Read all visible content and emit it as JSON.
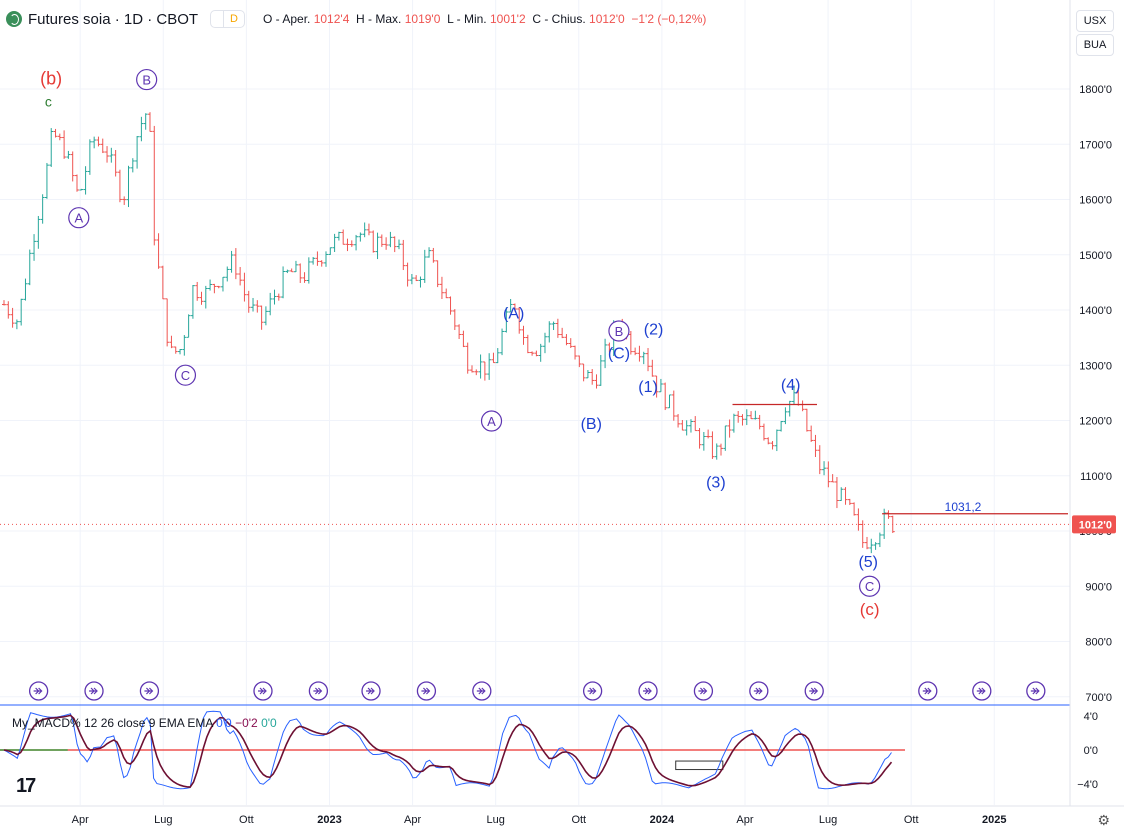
{
  "header": {
    "title": "Futures soia · 1D · CBOT",
    "pill_left": "",
    "pill_right": "D",
    "ohlc": [
      {
        "label": "O - Aper.",
        "value": "1012'4"
      },
      {
        "label": "H - Max.",
        "value": "1019'0"
      },
      {
        "label": "L - Min.",
        "value": "1001'2"
      },
      {
        "label": "C - Chius.",
        "value": "1012'0"
      },
      {
        "label": "",
        "value": "−1'2 (−0,12%)"
      }
    ]
  },
  "currency": {
    "unit": "USX",
    "quote": "BUA"
  },
  "price_axis": {
    "ticks": [
      {
        "v": 1800,
        "label": "1800'0"
      },
      {
        "v": 1700,
        "label": "1700'0"
      },
      {
        "v": 1600,
        "label": "1600'0"
      },
      {
        "v": 1500,
        "label": "1500'0"
      },
      {
        "v": 1400,
        "label": "1400'0"
      },
      {
        "v": 1300,
        "label": "1300'0"
      },
      {
        "v": 1200,
        "label": "1200'0"
      },
      {
        "v": 1100,
        "label": "1100'0"
      },
      {
        "v": 1000,
        "label": "1000'0"
      },
      {
        "v": 900,
        "label": "900'0"
      },
      {
        "v": 800,
        "label": "800'0"
      },
      {
        "v": 700,
        "label": "700'0"
      }
    ],
    "last_price_label": "1012'0",
    "last_price": 1012,
    "level_label": "1031,2",
    "level": 1031.2
  },
  "time_axis": [
    {
      "t": 2.75,
      "label": "Apr"
    },
    {
      "t": 5.75,
      "label": "Lug"
    },
    {
      "t": 8.75,
      "label": "Ott"
    },
    {
      "t": 11.75,
      "label": "2023"
    },
    {
      "t": 14.75,
      "label": "Apr"
    },
    {
      "t": 17.75,
      "label": "Lug"
    },
    {
      "t": 20.75,
      "label": "Ott"
    },
    {
      "t": 23.75,
      "label": "2024"
    },
    {
      "t": 26.75,
      "label": "Apr"
    },
    {
      "t": 29.75,
      "label": "Lug"
    },
    {
      "t": 32.75,
      "label": "Ott"
    },
    {
      "t": 35.75,
      "label": "2025"
    }
  ],
  "wave_labels": [
    {
      "text": "(b)",
      "t": 1.7,
      "p": 1808,
      "color": "#e53935",
      "circled": false,
      "size": 18
    },
    {
      "text": "c",
      "t": 1.6,
      "p": 1768,
      "color": "#2e7d32",
      "circled": false,
      "size": 14
    },
    {
      "text": "B",
      "t": 5.15,
      "p": 1808,
      "color": "#5e35b1",
      "circled": true,
      "size": 13
    },
    {
      "text": "A",
      "t": 2.7,
      "p": 1558,
      "color": "#5e35b1",
      "circled": true,
      "size": 13
    },
    {
      "text": "C",
      "t": 6.55,
      "p": 1273,
      "color": "#5e35b1",
      "circled": true,
      "size": 13
    },
    {
      "text": "(A)",
      "t": 18.4,
      "p": 1385,
      "color": "#1e40d0",
      "circled": false,
      "size": 16
    },
    {
      "text": "A",
      "t": 17.6,
      "p": 1190,
      "color": "#5e35b1",
      "circled": true,
      "size": 13
    },
    {
      "text": "(B)",
      "t": 21.2,
      "p": 1185,
      "color": "#1e40d0",
      "circled": false,
      "size": 16
    },
    {
      "text": "B",
      "t": 22.2,
      "p": 1353,
      "color": "#5e35b1",
      "circled": true,
      "size": 13
    },
    {
      "text": "(C)",
      "t": 22.2,
      "p": 1312,
      "color": "#1e40d0",
      "circled": false,
      "size": 16
    },
    {
      "text": "(2)",
      "t": 23.45,
      "p": 1356,
      "color": "#1e40d0",
      "circled": false,
      "size": 16
    },
    {
      "text": "(1)",
      "t": 23.25,
      "p": 1252,
      "color": "#1e40d0",
      "circled": false,
      "size": 16
    },
    {
      "text": "(3)",
      "t": 25.7,
      "p": 1079,
      "color": "#1e40d0",
      "circled": false,
      "size": 16
    },
    {
      "text": "(4)",
      "t": 28.4,
      "p": 1255,
      "color": "#1e40d0",
      "circled": false,
      "size": 16
    },
    {
      "text": "(5)",
      "t": 31.2,
      "p": 935,
      "color": "#1e40d0",
      "circled": false,
      "size": 16
    },
    {
      "text": "C",
      "t": 31.25,
      "p": 891,
      "color": "#5e35b1",
      "circled": true,
      "size": 13
    },
    {
      "text": "(c)",
      "t": 31.25,
      "p": 848,
      "color": "#e53935",
      "circled": false,
      "size": 17
    }
  ],
  "event_markers_t": [
    1.25,
    3.25,
    5.25,
    9.35,
    11.35,
    13.25,
    15.25,
    17.25,
    21.25,
    23.25,
    25.25,
    27.25,
    29.25,
    33.35,
    35.3,
    37.25
  ],
  "macd": {
    "title": "My_MACD% 12 26 close 9 EMA EMA",
    "values": [
      "0'0",
      "−0'2",
      "0'0"
    ],
    "ticks": [
      {
        "v": 4,
        "label": "4'0"
      },
      {
        "v": 0,
        "label": "0'0"
      },
      {
        "v": -4,
        "label": "−4'0"
      }
    ]
  },
  "chart_data": {
    "type": "line",
    "title": "Futures soia · 1D · CBOT",
    "xlabel": "",
    "ylabel": "",
    "price_range": [
      700,
      1850
    ],
    "series": [
      {
        "name": "",
        "points": [
          [
            0.0,
            1410
          ],
          [
            0.5,
            1380
          ],
          [
            1.0,
            1520
          ],
          [
            1.5,
            1640
          ],
          [
            1.75,
            1720
          ],
          [
            2.2,
            1690
          ],
          [
            2.7,
            1600
          ],
          [
            3.2,
            1710
          ],
          [
            3.7,
            1690
          ],
          [
            4.3,
            1600
          ],
          [
            4.7,
            1700
          ],
          [
            5.1,
            1760
          ],
          [
            5.3,
            1700
          ],
          [
            5.4,
            1550
          ],
          [
            5.7,
            1420
          ],
          [
            6.0,
            1320
          ],
          [
            6.4,
            1330
          ],
          [
            6.8,
            1440
          ],
          [
            7.3,
            1430
          ],
          [
            7.8,
            1460
          ],
          [
            8.3,
            1490
          ],
          [
            8.8,
            1410
          ],
          [
            9.3,
            1380
          ],
          [
            9.8,
            1430
          ],
          [
            10.3,
            1470
          ],
          [
            10.8,
            1460
          ],
          [
            11.3,
            1490
          ],
          [
            11.8,
            1520
          ],
          [
            12.3,
            1530
          ],
          [
            12.8,
            1540
          ],
          [
            13.3,
            1520
          ],
          [
            13.8,
            1530
          ],
          [
            14.3,
            1500
          ],
          [
            14.8,
            1440
          ],
          [
            15.3,
            1500
          ],
          [
            15.7,
            1450
          ],
          [
            16.2,
            1390
          ],
          [
            16.7,
            1310
          ],
          [
            17.2,
            1300
          ],
          [
            17.6,
            1290
          ],
          [
            18.0,
            1360
          ],
          [
            18.4,
            1420
          ],
          [
            18.8,
            1340
          ],
          [
            19.3,
            1330
          ],
          [
            19.8,
            1380
          ],
          [
            20.3,
            1340
          ],
          [
            20.8,
            1290
          ],
          [
            21.3,
            1270
          ],
          [
            21.7,
            1320
          ],
          [
            22.2,
            1380
          ],
          [
            22.6,
            1340
          ],
          [
            23.1,
            1330
          ],
          [
            23.5,
            1270
          ],
          [
            24.0,
            1230
          ],
          [
            24.6,
            1190
          ],
          [
            25.1,
            1170
          ],
          [
            25.7,
            1140
          ],
          [
            26.3,
            1200
          ],
          [
            26.8,
            1200
          ],
          [
            27.3,
            1190
          ],
          [
            27.7,
            1160
          ],
          [
            28.2,
            1230
          ],
          [
            28.6,
            1240
          ],
          [
            29.0,
            1180
          ],
          [
            29.4,
            1120
          ],
          [
            29.8,
            1090
          ],
          [
            30.2,
            1060
          ],
          [
            30.6,
            1030
          ],
          [
            31.0,
            980
          ],
          [
            31.4,
            990
          ],
          [
            31.8,
            1020
          ],
          [
            32.1,
            1012
          ]
        ]
      }
    ]
  }
}
